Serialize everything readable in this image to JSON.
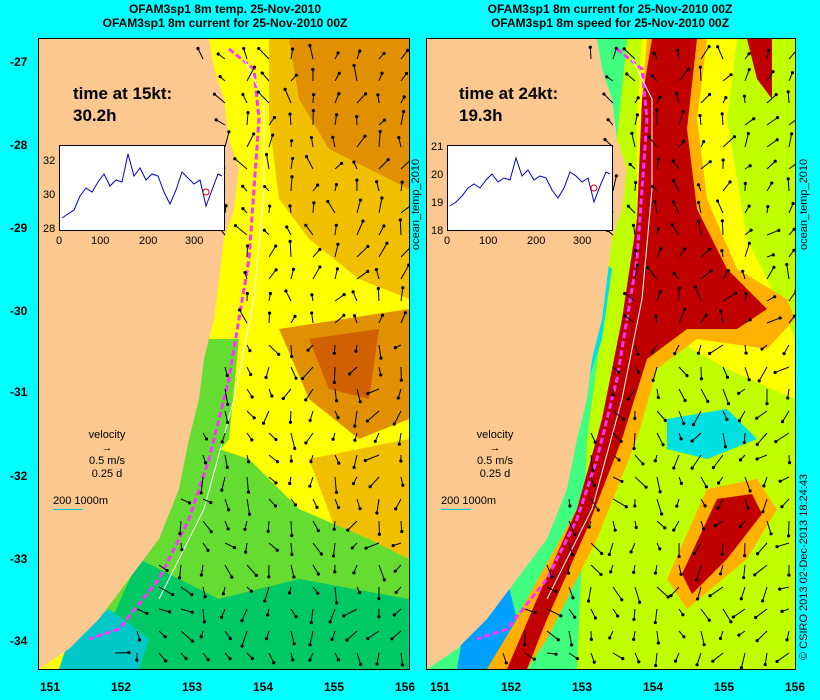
{
  "titles": {
    "left_line1": "OFAM3sp1 8m temp. 25-Nov-2010",
    "left_line2": "OFAM3sp1 8m current for 25-Nov-2010 00Z",
    "right_line1": "OFAM3sp1 8m current for 25-Nov-2010 00Z",
    "right_line2": "OFAM3sp1 8m speed for 25-Nov-2010 00Z"
  },
  "y_ticks": [
    "-27",
    "-28",
    "-29",
    "-30",
    "-31",
    "-32",
    "-33",
    "-34"
  ],
  "x_ticks": [
    "151",
    "152",
    "153",
    "154",
    "155",
    "156"
  ],
  "left_panel": {
    "time_label": "time at 15kt:",
    "time_value": "30.2h",
    "inset": {
      "y_ticks": [
        "32",
        "30",
        "28"
      ],
      "x_ticks": [
        "0",
        "100",
        "200",
        "300"
      ]
    },
    "side_label": "ocean_temp_2010"
  },
  "right_panel": {
    "time_label": "time at 24kt:",
    "time_value": "19.3h",
    "inset": {
      "y_ticks": [
        "21",
        "20",
        "19",
        "18"
      ],
      "x_ticks": [
        "0",
        "100",
        "200",
        "300"
      ]
    },
    "side_label": "ocean_temp_2010"
  },
  "velocity_legend": {
    "title": "velocity",
    "speed": "0.5 m/s",
    "duration": "0.25 d"
  },
  "depth_legend": {
    "label": "200  1000m"
  },
  "credit": "© CSIRO 2013  02-Dec-2013 18:24:43",
  "colors": {
    "land": "#fbc890",
    "frame_bg": "#00ffff",
    "route": "#ff33ff",
    "arrow": "#000000",
    "temp_scale": [
      "#00c8c8",
      "#00c864",
      "#64dc32",
      "#c8f000",
      "#ffff00",
      "#f0c000",
      "#e09000",
      "#d06000"
    ],
    "speed_scale": [
      "#00a0ff",
      "#00e0e0",
      "#40ff80",
      "#c0ff00",
      "#ffff00",
      "#ffb000",
      "#ff4000",
      "#c00000",
      "#a00000"
    ]
  }
}
